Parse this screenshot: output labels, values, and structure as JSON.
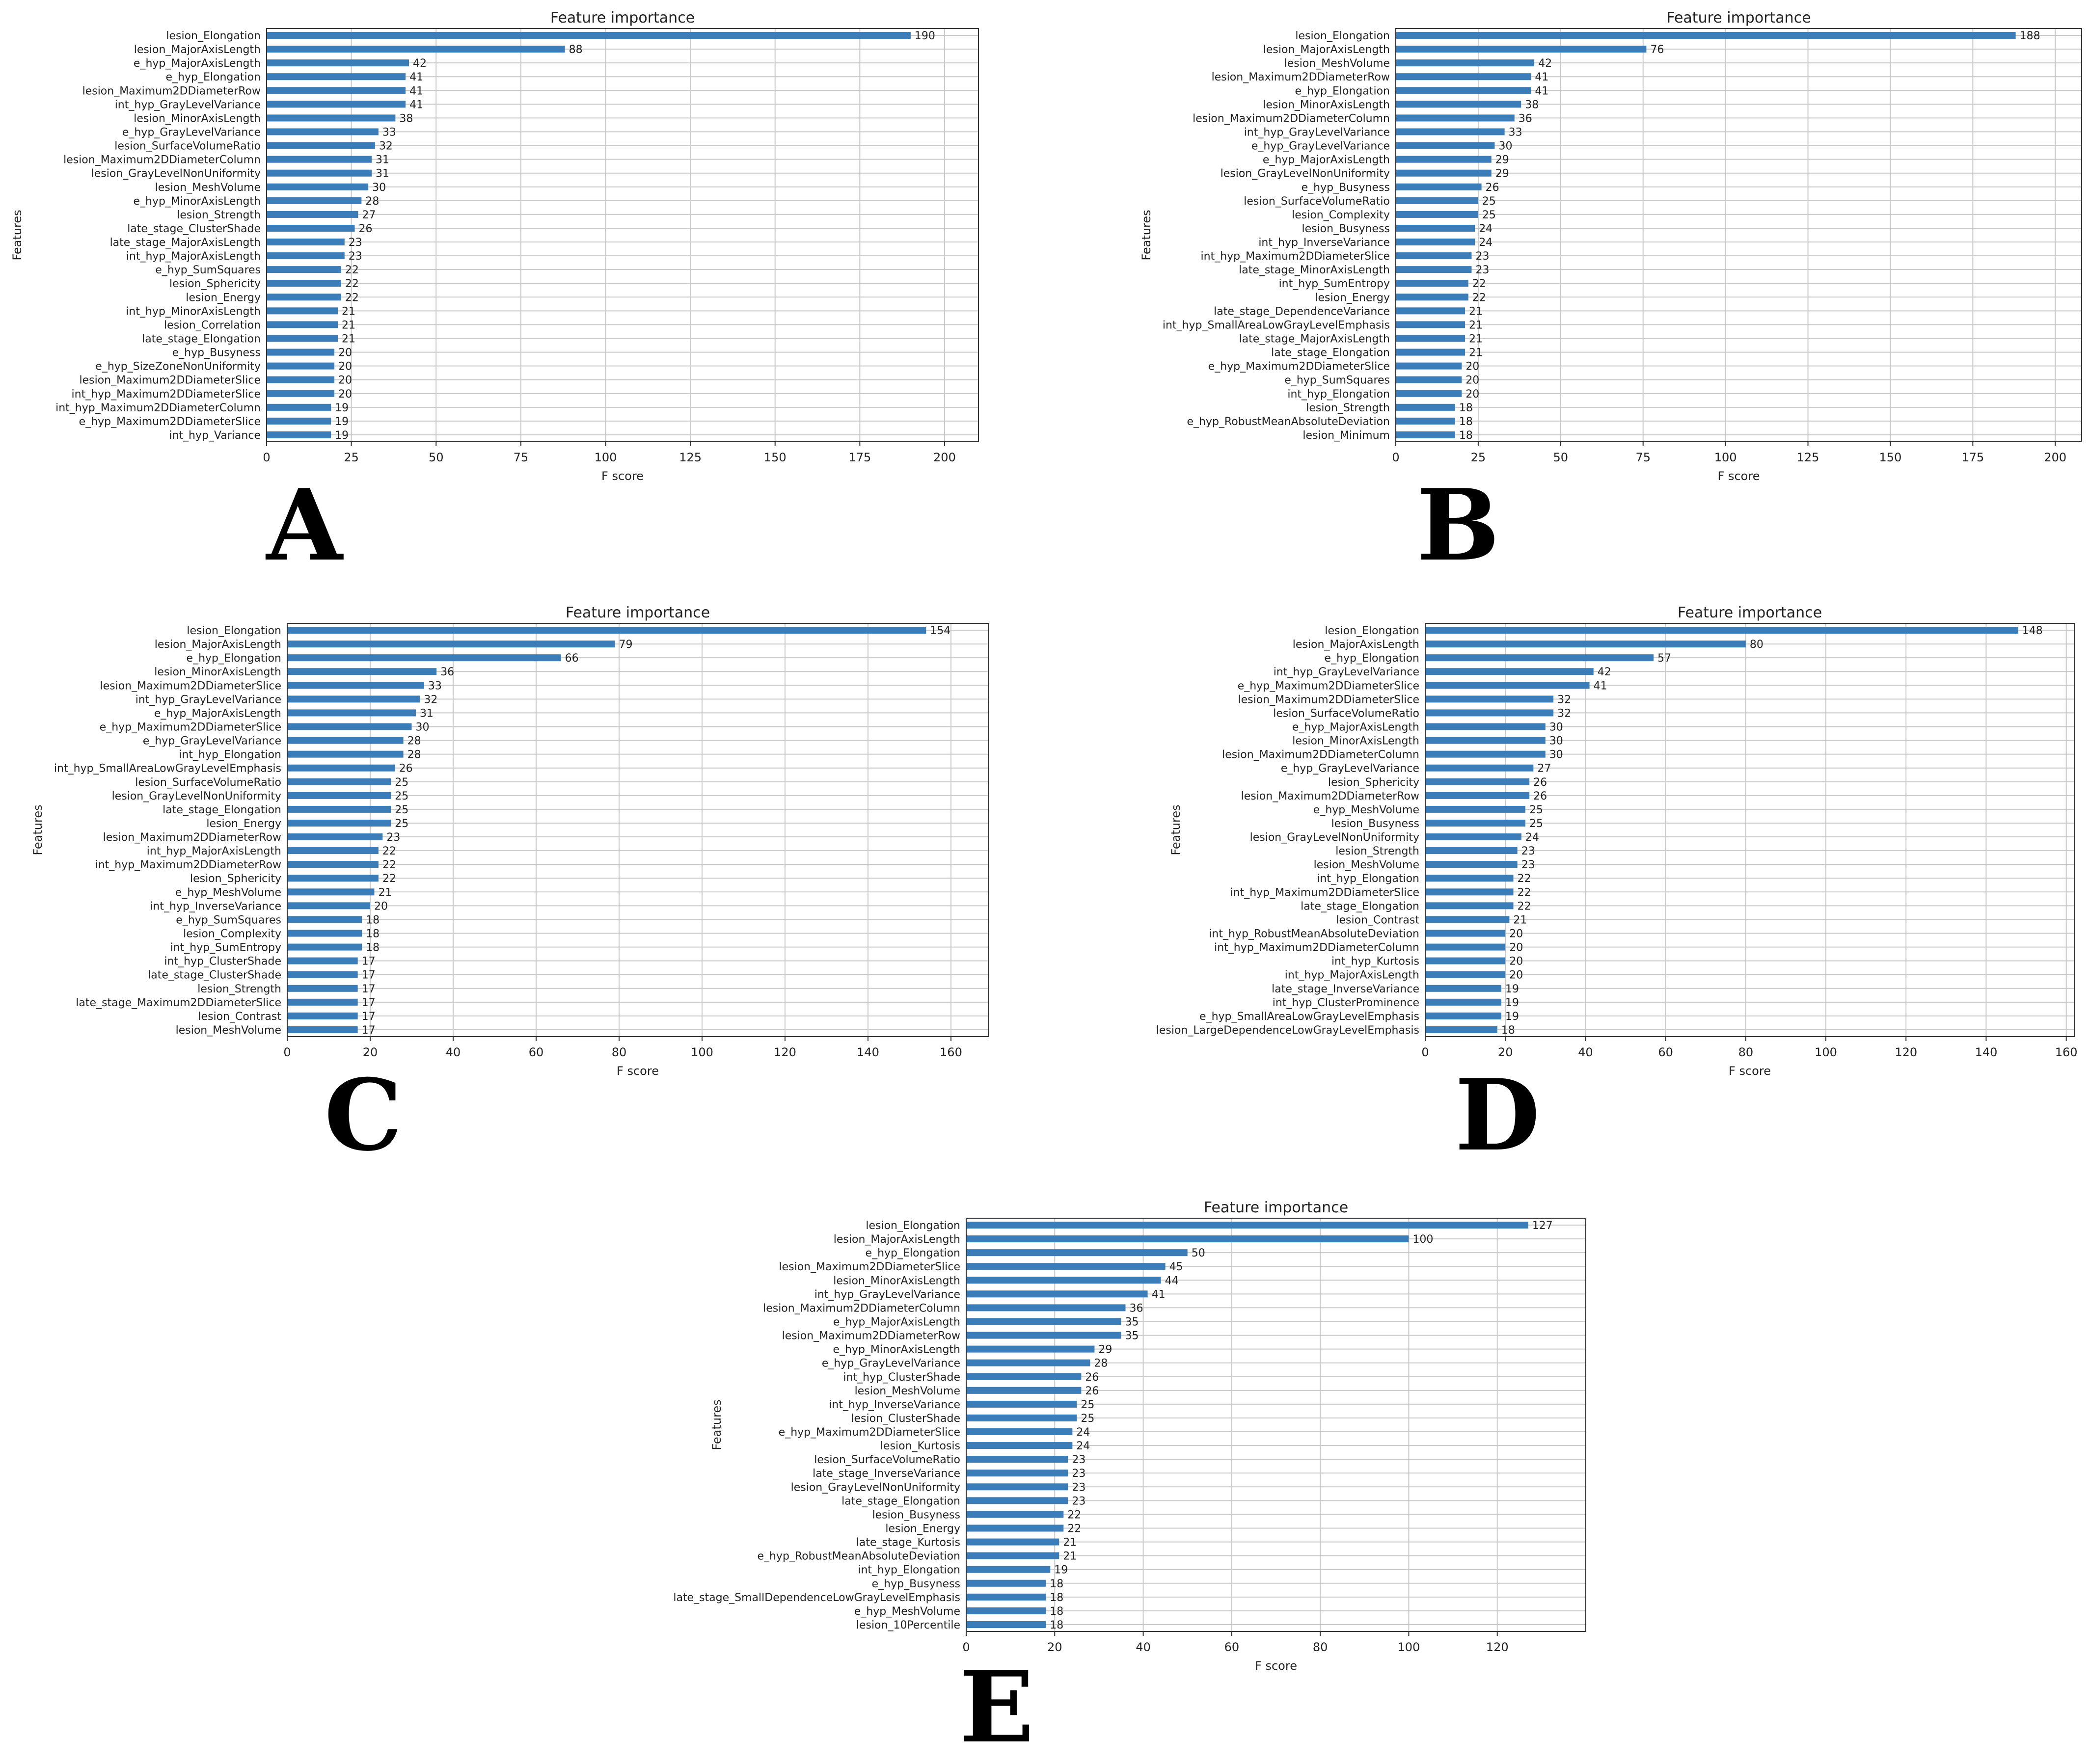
{
  "bar_color": "#3a7db8",
  "chart_data": [
    {
      "panel_label": "A",
      "type": "bar",
      "orientation": "horizontal",
      "title": "Feature importance",
      "xlabel": "F score",
      "ylabel": "Features",
      "xlim": [
        0,
        210
      ],
      "xticks": [
        0,
        25,
        50,
        75,
        100,
        125,
        150,
        175,
        200
      ],
      "grid": true,
      "categories": [
        "lesion_Elongation",
        "lesion_MajorAxisLength",
        "e_hyp_MajorAxisLength",
        "e_hyp_Elongation",
        "lesion_Maximum2DDiameterRow",
        "int_hyp_GrayLevelVariance",
        "lesion_MinorAxisLength",
        "e_hyp_GrayLevelVariance",
        "lesion_SurfaceVolumeRatio",
        "lesion_Maximum2DDiameterColumn",
        "lesion_GrayLevelNonUniformity",
        "lesion_MeshVolume",
        "e_hyp_MinorAxisLength",
        "lesion_Strength",
        "late_stage_ClusterShade",
        "late_stage_MajorAxisLength",
        "int_hyp_MajorAxisLength",
        "e_hyp_SumSquares",
        "lesion_Sphericity",
        "lesion_Energy",
        "int_hyp_MinorAxisLength",
        "lesion_Correlation",
        "late_stage_Elongation",
        "e_hyp_Busyness",
        "e_hyp_SizeZoneNonUniformity",
        "lesion_Maximum2DDiameterSlice",
        "int_hyp_Maximum2DDiameterSlice",
        "int_hyp_Maximum2DDiameterColumn",
        "e_hyp_Maximum2DDiameterSlice",
        "int_hyp_Variance"
      ],
      "values": [
        190,
        88,
        42,
        41,
        41,
        41,
        38,
        33,
        32,
        31,
        31,
        30,
        28,
        27,
        26,
        23,
        23,
        22,
        22,
        22,
        21,
        21,
        21,
        20,
        20,
        20,
        20,
        19,
        19,
        19
      ]
    },
    {
      "panel_label": "B",
      "type": "bar",
      "orientation": "horizontal",
      "title": "Feature importance",
      "xlabel": "F score",
      "ylabel": "Features",
      "xlim": [
        0,
        208
      ],
      "xticks": [
        0,
        25,
        50,
        75,
        100,
        125,
        150,
        175,
        200
      ],
      "grid": true,
      "categories": [
        "lesion_Elongation",
        "lesion_MajorAxisLength",
        "lesion_MeshVolume",
        "lesion_Maximum2DDiameterRow",
        "e_hyp_Elongation",
        "lesion_MinorAxisLength",
        "lesion_Maximum2DDiameterColumn",
        "int_hyp_GrayLevelVariance",
        "e_hyp_GrayLevelVariance",
        "e_hyp_MajorAxisLength",
        "lesion_GrayLevelNonUniformity",
        "e_hyp_Busyness",
        "lesion_SurfaceVolumeRatio",
        "lesion_Complexity",
        "lesion_Busyness",
        "int_hyp_InverseVariance",
        "int_hyp_Maximum2DDiameterSlice",
        "late_stage_MinorAxisLength",
        "int_hyp_SumEntropy",
        "lesion_Energy",
        "late_stage_DependenceVariance",
        "int_hyp_SmallAreaLowGrayLevelEmphasis",
        "late_stage_MajorAxisLength",
        "late_stage_Elongation",
        "e_hyp_Maximum2DDiameterSlice",
        "e_hyp_SumSquares",
        "int_hyp_Elongation",
        "lesion_Strength",
        "e_hyp_RobustMeanAbsoluteDeviation",
        "lesion_Minimum"
      ],
      "values": [
        188,
        76,
        42,
        41,
        41,
        38,
        36,
        33,
        30,
        29,
        29,
        26,
        25,
        25,
        24,
        24,
        23,
        23,
        22,
        22,
        21,
        21,
        21,
        21,
        20,
        20,
        20,
        18,
        18,
        18
      ]
    },
    {
      "panel_label": "C",
      "type": "bar",
      "orientation": "horizontal",
      "title": "Feature importance",
      "xlabel": "F score",
      "ylabel": "Features",
      "xlim": [
        0,
        169
      ],
      "xticks": [
        0,
        20,
        40,
        60,
        80,
        100,
        120,
        140,
        160
      ],
      "grid": true,
      "categories": [
        "lesion_Elongation",
        "lesion_MajorAxisLength",
        "e_hyp_Elongation",
        "lesion_MinorAxisLength",
        "lesion_Maximum2DDiameterSlice",
        "int_hyp_GrayLevelVariance",
        "e_hyp_MajorAxisLength",
        "e_hyp_Maximum2DDiameterSlice",
        "e_hyp_GrayLevelVariance",
        "int_hyp_Elongation",
        "int_hyp_SmallAreaLowGrayLevelEmphasis",
        "lesion_SurfaceVolumeRatio",
        "lesion_GrayLevelNonUniformity",
        "late_stage_Elongation",
        "lesion_Energy",
        "lesion_Maximum2DDiameterRow",
        "int_hyp_MajorAxisLength",
        "int_hyp_Maximum2DDiameterRow",
        "lesion_Sphericity",
        "e_hyp_MeshVolume",
        "int_hyp_InverseVariance",
        "e_hyp_SumSquares",
        "lesion_Complexity",
        "int_hyp_SumEntropy",
        "int_hyp_ClusterShade",
        "late_stage_ClusterShade",
        "lesion_Strength",
        "late_stage_Maximum2DDiameterSlice",
        "lesion_Contrast",
        "lesion_MeshVolume"
      ],
      "values": [
        154,
        79,
        66,
        36,
        33,
        32,
        31,
        30,
        28,
        28,
        26,
        25,
        25,
        25,
        25,
        23,
        22,
        22,
        22,
        21,
        20,
        18,
        18,
        18,
        17,
        17,
        17,
        17,
        17,
        17
      ]
    },
    {
      "panel_label": "D",
      "type": "bar",
      "orientation": "horizontal",
      "title": "Feature importance",
      "xlabel": "F score",
      "ylabel": "Features",
      "xlim": [
        0,
        162
      ],
      "xticks": [
        0,
        20,
        40,
        60,
        80,
        100,
        120,
        140,
        160
      ],
      "grid": true,
      "categories": [
        "lesion_Elongation",
        "lesion_MajorAxisLength",
        "e_hyp_Elongation",
        "int_hyp_GrayLevelVariance",
        "e_hyp_Maximum2DDiameterSlice",
        "lesion_Maximum2DDiameterSlice",
        "lesion_SurfaceVolumeRatio",
        "e_hyp_MajorAxisLength",
        "lesion_MinorAxisLength",
        "lesion_Maximum2DDiameterColumn",
        "e_hyp_GrayLevelVariance",
        "lesion_Sphericity",
        "lesion_Maximum2DDiameterRow",
        "e_hyp_MeshVolume",
        "lesion_Busyness",
        "lesion_GrayLevelNonUniformity",
        "lesion_Strength",
        "lesion_MeshVolume",
        "int_hyp_Elongation",
        "int_hyp_Maximum2DDiameterSlice",
        "late_stage_Elongation",
        "lesion_Contrast",
        "int_hyp_RobustMeanAbsoluteDeviation",
        "int_hyp_Maximum2DDiameterColumn",
        "int_hyp_Kurtosis",
        "int_hyp_MajorAxisLength",
        "late_stage_InverseVariance",
        "int_hyp_ClusterProminence",
        "e_hyp_SmallAreaLowGrayLevelEmphasis",
        "lesion_LargeDependenceLowGrayLevelEmphasis"
      ],
      "values": [
        148,
        80,
        57,
        42,
        41,
        32,
        32,
        30,
        30,
        30,
        27,
        26,
        26,
        25,
        25,
        24,
        23,
        23,
        22,
        22,
        22,
        21,
        20,
        20,
        20,
        20,
        19,
        19,
        19,
        18
      ]
    },
    {
      "panel_label": "E",
      "type": "bar",
      "orientation": "horizontal",
      "title": "Feature importance",
      "xlabel": "F score",
      "ylabel": "Features",
      "xlim": [
        0,
        140
      ],
      "xticks": [
        0,
        20,
        40,
        60,
        80,
        100,
        120
      ],
      "grid": true,
      "categories": [
        "lesion_Elongation",
        "lesion_MajorAxisLength",
        "e_hyp_Elongation",
        "lesion_Maximum2DDiameterSlice",
        "lesion_MinorAxisLength",
        "int_hyp_GrayLevelVariance",
        "lesion_Maximum2DDiameterColumn",
        "e_hyp_MajorAxisLength",
        "lesion_Maximum2DDiameterRow",
        "e_hyp_MinorAxisLength",
        "e_hyp_GrayLevelVariance",
        "int_hyp_ClusterShade",
        "lesion_MeshVolume",
        "int_hyp_InverseVariance",
        "lesion_ClusterShade",
        "e_hyp_Maximum2DDiameterSlice",
        "lesion_Kurtosis",
        "lesion_SurfaceVolumeRatio",
        "late_stage_InverseVariance",
        "lesion_GrayLevelNonUniformity",
        "late_stage_Elongation",
        "lesion_Busyness",
        "lesion_Energy",
        "late_stage_Kurtosis",
        "e_hyp_RobustMeanAbsoluteDeviation",
        "int_hyp_Elongation",
        "e_hyp_Busyness",
        "late_stage_SmallDependenceLowGrayLevelEmphasis",
        "e_hyp_MeshVolume",
        "lesion_10Percentile"
      ],
      "values": [
        127,
        100,
        50,
        45,
        44,
        41,
        36,
        35,
        35,
        29,
        28,
        26,
        26,
        25,
        25,
        24,
        24,
        23,
        23,
        23,
        23,
        22,
        22,
        21,
        21,
        19,
        18,
        18,
        18,
        18
      ]
    }
  ]
}
